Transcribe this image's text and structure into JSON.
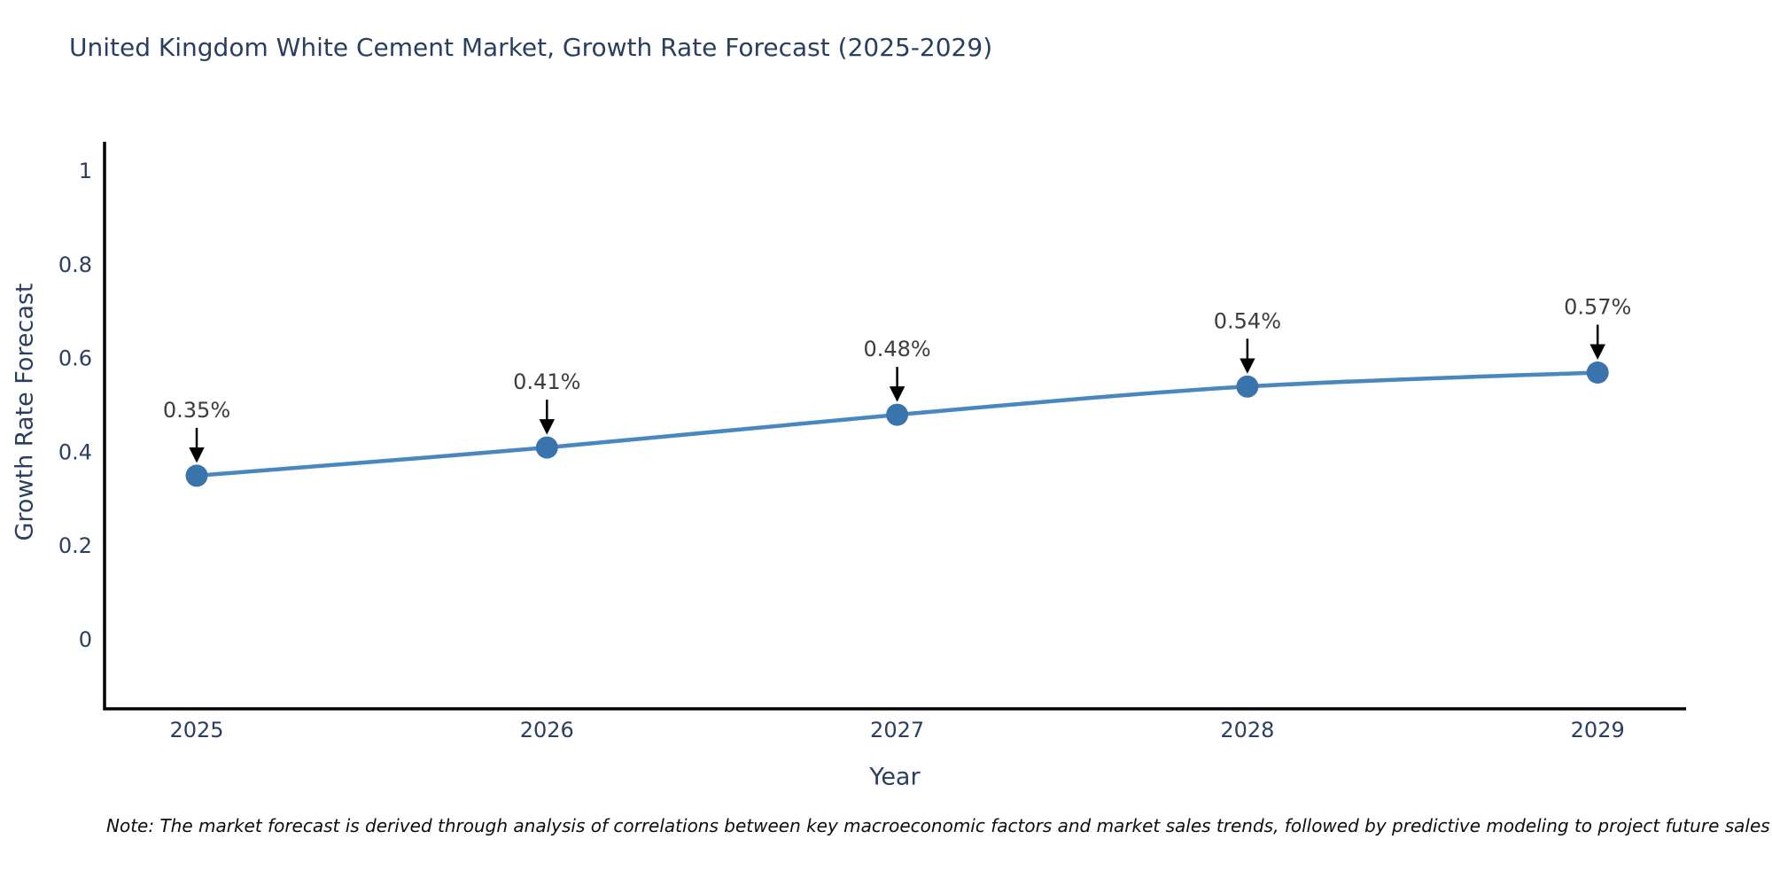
{
  "chart_data": {
    "type": "line",
    "title": "United Kingdom White Cement Market, Growth Rate Forecast (2025-2029)",
    "xlabel": "Year",
    "ylabel": "Growth Rate Forecast",
    "categories": [
      "2025",
      "2026",
      "2027",
      "2028",
      "2029"
    ],
    "values": [
      0.35,
      0.41,
      0.48,
      0.54,
      0.57
    ],
    "point_labels": [
      "0.35%",
      "0.41%",
      "0.48%",
      "0.54%",
      "0.57%"
    ],
    "y_ticks": [
      0,
      0.2,
      0.4,
      0.6,
      0.8,
      1
    ],
    "y_tick_labels": [
      "0",
      "0.2",
      "0.4",
      "0.6",
      "0.8",
      "1"
    ],
    "ylim": [
      -0.15,
      1.06
    ],
    "grid": false,
    "legend_position": "none",
    "annotations_style": "value label with downward arrow to each marker",
    "colors": {
      "line": "#4a86c0",
      "marker": "#3a74ad",
      "axis": "#000000",
      "axis_text": "#2a3f5f",
      "annotation_text": "#3d3d3d",
      "arrow": "#000000",
      "background": "#ffffff"
    }
  },
  "note": "Note: The market forecast is derived through analysis of correlations between key macroeconomic factors and market sales trends, followed by predictive modeling to project future sales"
}
